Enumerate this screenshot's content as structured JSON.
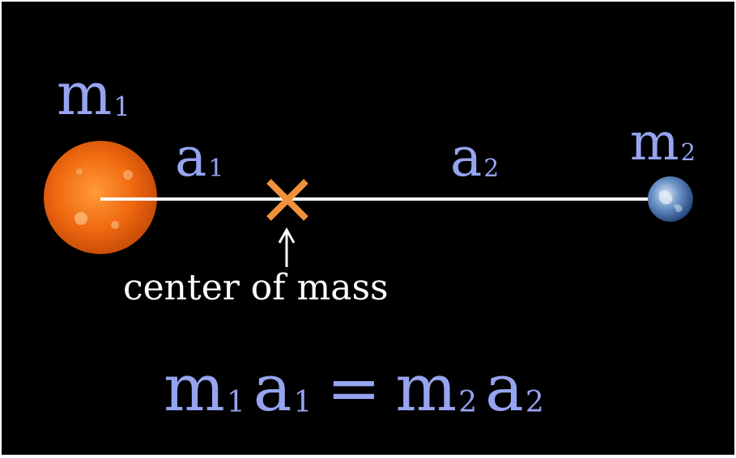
{
  "labels": {
    "mass1": "m",
    "mass1_sub": "1",
    "mass2": "m",
    "mass2_sub": "2",
    "dist1": "a",
    "dist1_sub": "1",
    "dist2": "a",
    "dist2_sub": "2"
  },
  "caption": "center of mass",
  "equation": {
    "left_mass": "m",
    "left_mass_sub": "1",
    "left_dist": "a",
    "left_dist_sub": "1",
    "equals": "=",
    "right_mass": "m",
    "right_mass_sub": "2",
    "right_dist": "a",
    "right_dist_sub": "2"
  },
  "colors": {
    "background": "#000000",
    "symbol": "#96a4f0",
    "marker": "#f0923a",
    "line": "#ffffff",
    "sun": "#f06a10",
    "earth": "#4a78b8"
  },
  "icons": {
    "sun": "sun-image",
    "earth": "earth-image",
    "marker": "x-mark-icon",
    "arrow": "up-arrow-icon"
  }
}
